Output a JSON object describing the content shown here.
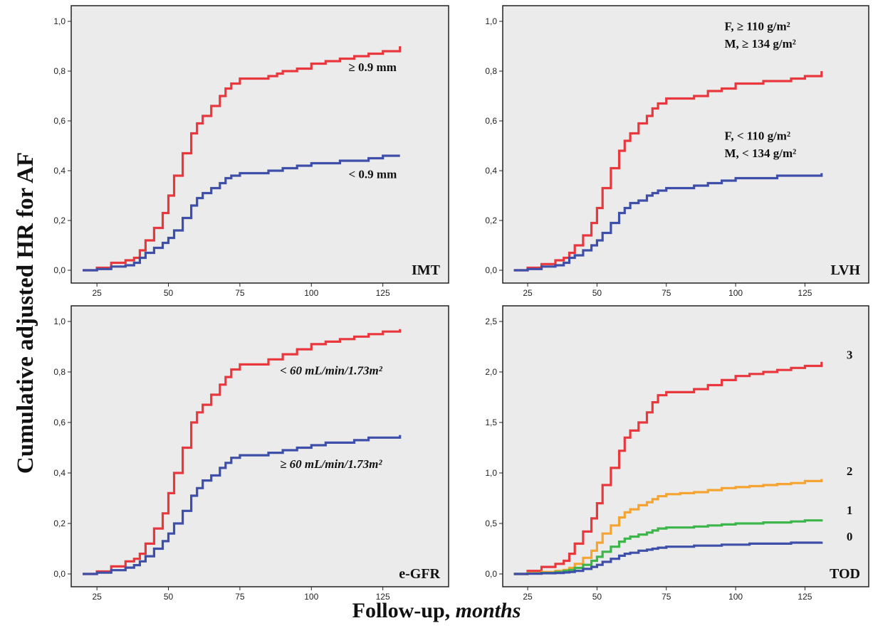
{
  "figure": {
    "ylabel": "Cumulative adjusted HR for AF",
    "xlabel_main": "Follow-up, ",
    "xlabel_unit": "months"
  },
  "colors": {
    "red": "#e8383d",
    "blue": "#3d4fa8",
    "orange": "#f5a431",
    "green": "#3cb54a",
    "panel_bg": "#ebebeb"
  },
  "chart_data": [
    {
      "type": "line",
      "panel_label": "IMT",
      "ylim": [
        0,
        1.0
      ],
      "yticks": [
        "0,0",
        "0,2",
        "0,4",
        "0,6",
        "0,8",
        "1,0"
      ],
      "xticks": [
        "25",
        "50",
        "75",
        "100",
        "125"
      ],
      "xlim": [
        16,
        148
      ],
      "series": [
        {
          "name": "≥ 0.9 mm",
          "color": "red",
          "x": [
            20,
            25,
            30,
            35,
            38,
            40,
            42,
            45,
            48,
            50,
            52,
            55,
            58,
            60,
            62,
            65,
            68,
            70,
            72,
            75,
            80,
            85,
            88,
            90,
            95,
            100,
            105,
            110,
            115,
            120,
            125,
            131
          ],
          "y": [
            0,
            0.01,
            0.03,
            0.04,
            0.05,
            0.08,
            0.12,
            0.17,
            0.23,
            0.3,
            0.38,
            0.47,
            0.55,
            0.59,
            0.62,
            0.66,
            0.7,
            0.73,
            0.75,
            0.77,
            0.77,
            0.78,
            0.79,
            0.8,
            0.81,
            0.83,
            0.84,
            0.85,
            0.86,
            0.87,
            0.88,
            0.9
          ]
        },
        {
          "name": "< 0.9 mm",
          "color": "blue",
          "x": [
            20,
            25,
            30,
            35,
            38,
            40,
            42,
            45,
            48,
            50,
            52,
            55,
            58,
            60,
            62,
            65,
            68,
            70,
            72,
            75,
            80,
            85,
            90,
            95,
            100,
            105,
            110,
            115,
            120,
            125,
            131
          ],
          "y": [
            0,
            0.005,
            0.015,
            0.02,
            0.03,
            0.05,
            0.07,
            0.09,
            0.11,
            0.13,
            0.16,
            0.21,
            0.26,
            0.29,
            0.31,
            0.33,
            0.35,
            0.37,
            0.38,
            0.39,
            0.39,
            0.4,
            0.41,
            0.42,
            0.43,
            0.43,
            0.44,
            0.44,
            0.45,
            0.46,
            0.46
          ]
        }
      ],
      "labels": [
        {
          "text": "≥ 0.9 mm",
          "x": 113,
          "y": 0.8
        },
        {
          "text": "< 0.9 mm",
          "x": 113,
          "y": 0.37
        }
      ]
    },
    {
      "type": "line",
      "panel_label": "LVH",
      "ylim": [
        0,
        1.0
      ],
      "yticks": [
        "0,0",
        "0,2",
        "0,4",
        "0,6",
        "0,8",
        "1,0"
      ],
      "xticks": [
        "25",
        "50",
        "75",
        "100",
        "125"
      ],
      "xlim": [
        16,
        148
      ],
      "series": [
        {
          "name": "F, ≥ 110 g/m² / M, ≥ 134 g/m²",
          "color": "red",
          "x": [
            20,
            25,
            30,
            35,
            38,
            40,
            42,
            45,
            48,
            50,
            52,
            55,
            58,
            60,
            62,
            65,
            68,
            70,
            72,
            75,
            80,
            85,
            90,
            95,
            100,
            105,
            110,
            115,
            120,
            125,
            131
          ],
          "y": [
            0,
            0.01,
            0.025,
            0.04,
            0.05,
            0.07,
            0.1,
            0.14,
            0.19,
            0.25,
            0.33,
            0.41,
            0.48,
            0.52,
            0.55,
            0.59,
            0.62,
            0.65,
            0.67,
            0.69,
            0.69,
            0.7,
            0.72,
            0.73,
            0.75,
            0.75,
            0.76,
            0.76,
            0.77,
            0.78,
            0.8
          ]
        },
        {
          "name": "F, < 110 g/m² / M, < 134 g/m²",
          "color": "blue",
          "x": [
            20,
            25,
            30,
            35,
            38,
            40,
            42,
            45,
            48,
            50,
            52,
            55,
            58,
            60,
            62,
            65,
            68,
            70,
            72,
            75,
            80,
            85,
            90,
            95,
            100,
            105,
            110,
            115,
            120,
            125,
            131
          ],
          "y": [
            0,
            0.005,
            0.015,
            0.02,
            0.03,
            0.05,
            0.06,
            0.08,
            0.1,
            0.12,
            0.15,
            0.19,
            0.23,
            0.25,
            0.27,
            0.28,
            0.3,
            0.31,
            0.32,
            0.33,
            0.33,
            0.34,
            0.35,
            0.36,
            0.37,
            0.37,
            0.37,
            0.38,
            0.38,
            0.38,
            0.39
          ]
        }
      ],
      "labels": [
        {
          "text": "F,  ≥ 110 g/m²",
          "x": 96,
          "y": 0.965
        },
        {
          "text": "M, ≥ 134 g/m²",
          "x": 96,
          "y": 0.895
        },
        {
          "text": "F,  < 110 g/m²",
          "x": 96,
          "y": 0.525
        },
        {
          "text": "M, < 134 g/m²",
          "x": 96,
          "y": 0.455
        }
      ]
    },
    {
      "type": "line",
      "panel_label": "e-GFR",
      "ylim": [
        0,
        1.05
      ],
      "yticks": [
        "0,0",
        "0,2",
        "0,4",
        "0,6",
        "0,8",
        "1,0"
      ],
      "xticks": [
        "25",
        "50",
        "75",
        "100",
        "125"
      ],
      "xlim": [
        16,
        148
      ],
      "series": [
        {
          "name": "< 60 mL/min/1.73m²",
          "color": "red",
          "x": [
            20,
            25,
            30,
            35,
            38,
            40,
            42,
            45,
            48,
            50,
            52,
            55,
            58,
            60,
            62,
            65,
            68,
            70,
            72,
            75,
            80,
            85,
            90,
            95,
            100,
            105,
            110,
            115,
            120,
            125,
            131
          ],
          "y": [
            0,
            0.01,
            0.03,
            0.05,
            0.06,
            0.08,
            0.12,
            0.18,
            0.24,
            0.32,
            0.4,
            0.5,
            0.6,
            0.64,
            0.67,
            0.71,
            0.75,
            0.78,
            0.81,
            0.83,
            0.83,
            0.85,
            0.87,
            0.89,
            0.91,
            0.92,
            0.93,
            0.94,
            0.95,
            0.96,
            0.97
          ]
        },
        {
          "name": "≥ 60 mL/min/1.73m²",
          "color": "blue",
          "x": [
            20,
            25,
            30,
            35,
            38,
            40,
            42,
            45,
            48,
            50,
            52,
            55,
            58,
            60,
            62,
            65,
            68,
            70,
            72,
            75,
            80,
            85,
            90,
            95,
            100,
            105,
            110,
            115,
            120,
            125,
            131
          ],
          "y": [
            0,
            0.005,
            0.015,
            0.025,
            0.035,
            0.05,
            0.07,
            0.1,
            0.13,
            0.16,
            0.2,
            0.25,
            0.31,
            0.34,
            0.37,
            0.39,
            0.42,
            0.44,
            0.46,
            0.47,
            0.47,
            0.48,
            0.49,
            0.5,
            0.51,
            0.52,
            0.52,
            0.53,
            0.54,
            0.54,
            0.55
          ]
        }
      ],
      "labels": [
        {
          "text": "< 60 mL/min/1.73m²",
          "x": 89,
          "y": 0.79,
          "italic": true
        },
        {
          "text": "≥ 60 mL/min/1.73m²",
          "x": 89,
          "y": 0.42,
          "italic": true
        }
      ]
    },
    {
      "type": "line",
      "panel_label": "TOD",
      "ylim": [
        0,
        2.65
      ],
      "yticks": [
        "0,0",
        "0,5",
        "1,0",
        "1,5",
        "2,0",
        "2,5"
      ],
      "xticks": [
        "25",
        "50",
        "75",
        "100",
        "125"
      ],
      "xlim": [
        16,
        148
      ],
      "series": [
        {
          "name": "3",
          "color": "red",
          "x": [
            20,
            25,
            30,
            35,
            38,
            40,
            42,
            45,
            48,
            50,
            52,
            55,
            58,
            60,
            62,
            65,
            68,
            70,
            72,
            75,
            80,
            85,
            90,
            95,
            100,
            105,
            110,
            115,
            120,
            125,
            131
          ],
          "y": [
            0,
            0.03,
            0.07,
            0.1,
            0.13,
            0.2,
            0.3,
            0.42,
            0.55,
            0.7,
            0.88,
            1.05,
            1.22,
            1.35,
            1.42,
            1.5,
            1.6,
            1.7,
            1.77,
            1.8,
            1.8,
            1.83,
            1.87,
            1.92,
            1.96,
            1.98,
            2.0,
            2.02,
            2.04,
            2.06,
            2.1
          ]
        },
        {
          "name": "2",
          "color": "orange",
          "x": [
            20,
            25,
            30,
            35,
            38,
            40,
            42,
            45,
            48,
            50,
            52,
            55,
            58,
            60,
            62,
            65,
            68,
            70,
            72,
            75,
            80,
            85,
            90,
            95,
            100,
            105,
            110,
            115,
            120,
            125,
            131
          ],
          "y": [
            0,
            0.01,
            0.02,
            0.03,
            0.04,
            0.06,
            0.1,
            0.16,
            0.23,
            0.31,
            0.4,
            0.48,
            0.56,
            0.61,
            0.64,
            0.68,
            0.71,
            0.74,
            0.77,
            0.79,
            0.8,
            0.81,
            0.83,
            0.85,
            0.86,
            0.87,
            0.88,
            0.89,
            0.9,
            0.92,
            0.94
          ]
        },
        {
          "name": "1",
          "color": "green",
          "x": [
            20,
            25,
            30,
            35,
            38,
            40,
            42,
            45,
            48,
            50,
            52,
            55,
            58,
            60,
            62,
            65,
            68,
            70,
            72,
            75,
            80,
            85,
            90,
            95,
            100,
            105,
            110,
            115,
            120,
            125,
            131
          ],
          "y": [
            0,
            0.005,
            0.01,
            0.02,
            0.03,
            0.04,
            0.06,
            0.09,
            0.13,
            0.17,
            0.22,
            0.27,
            0.32,
            0.35,
            0.37,
            0.39,
            0.41,
            0.43,
            0.45,
            0.46,
            0.46,
            0.47,
            0.48,
            0.49,
            0.5,
            0.5,
            0.51,
            0.51,
            0.52,
            0.53,
            0.54
          ]
        },
        {
          "name": "0",
          "color": "blue",
          "x": [
            20,
            25,
            30,
            35,
            38,
            40,
            42,
            45,
            48,
            50,
            52,
            55,
            58,
            60,
            62,
            65,
            68,
            70,
            72,
            75,
            80,
            85,
            90,
            95,
            100,
            105,
            110,
            115,
            120,
            125,
            131
          ],
          "y": [
            0,
            0.003,
            0.007,
            0.01,
            0.015,
            0.02,
            0.03,
            0.05,
            0.07,
            0.09,
            0.12,
            0.15,
            0.18,
            0.2,
            0.21,
            0.23,
            0.24,
            0.25,
            0.26,
            0.27,
            0.27,
            0.28,
            0.28,
            0.29,
            0.29,
            0.3,
            0.3,
            0.3,
            0.31,
            0.31,
            0.32
          ]
        }
      ],
      "labels": [
        {
          "text": "3",
          "x": 140,
          "y": 2.13
        },
        {
          "text": "2",
          "x": 140,
          "y": 0.98
        },
        {
          "text": "1",
          "x": 140,
          "y": 0.59
        },
        {
          "text": "0",
          "x": 140,
          "y": 0.33
        }
      ]
    }
  ]
}
